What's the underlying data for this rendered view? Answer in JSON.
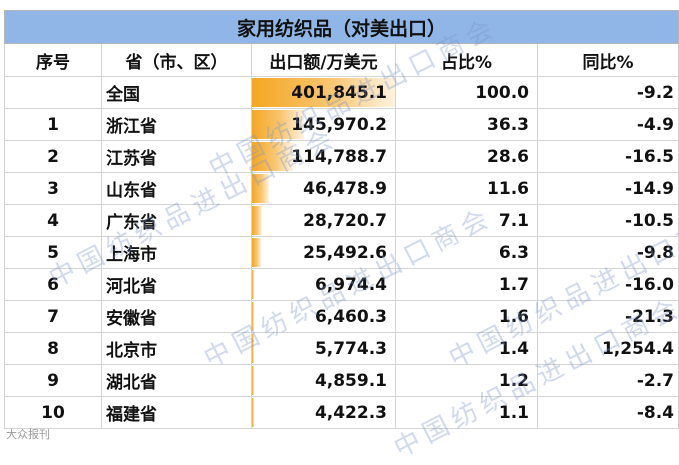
{
  "title": "家用纺织品（对美出口）",
  "headers": {
    "index": "序号",
    "province": "省（市、区）",
    "value": "出口额/万美元",
    "share": "占比%",
    "yoy": "同比%"
  },
  "rows": [
    {
      "index": "",
      "province": "全国",
      "value": "401,845.1",
      "value_num": 401845.1,
      "share": "100.0",
      "yoy": "-9.2"
    },
    {
      "index": "1",
      "province": "浙江省",
      "value": "145,970.2",
      "value_num": 145970.2,
      "share": "36.3",
      "yoy": "-4.9"
    },
    {
      "index": "2",
      "province": "江苏省",
      "value": "114,788.7",
      "value_num": 114788.7,
      "share": "28.6",
      "yoy": "-16.5"
    },
    {
      "index": "3",
      "province": "山东省",
      "value": "46,478.9",
      "value_num": 46478.9,
      "share": "11.6",
      "yoy": "-14.9"
    },
    {
      "index": "4",
      "province": "广东省",
      "value": "28,720.7",
      "value_num": 28720.7,
      "share": "7.1",
      "yoy": "-10.5"
    },
    {
      "index": "5",
      "province": "上海市",
      "value": "25,492.6",
      "value_num": 25492.6,
      "share": "6.3",
      "yoy": "-9.8"
    },
    {
      "index": "6",
      "province": "河北省",
      "value": "6,974.4",
      "value_num": 6974.4,
      "share": "1.7",
      "yoy": "-16.0"
    },
    {
      "index": "7",
      "province": "安徽省",
      "value": "6,460.3",
      "value_num": 6460.3,
      "share": "1.6",
      "yoy": "-21.3"
    },
    {
      "index": "8",
      "province": "北京市",
      "value": "5,774.3",
      "value_num": 5774.3,
      "share": "1.4",
      "yoy": "1,254.4"
    },
    {
      "index": "9",
      "province": "湖北省",
      "value": "4,859.1",
      "value_num": 4859.1,
      "share": "1.2",
      "yoy": "-2.7"
    },
    {
      "index": "10",
      "province": "福建省",
      "value": "4,422.3",
      "value_num": 4422.3,
      "share": "1.1",
      "yoy": "-8.4"
    }
  ],
  "watermark": "中国纺织品进出口商会",
  "footer_logo": "大众报刊",
  "colors": {
    "title_bg": "#8fb6e6",
    "bar": "#f5a623"
  }
}
